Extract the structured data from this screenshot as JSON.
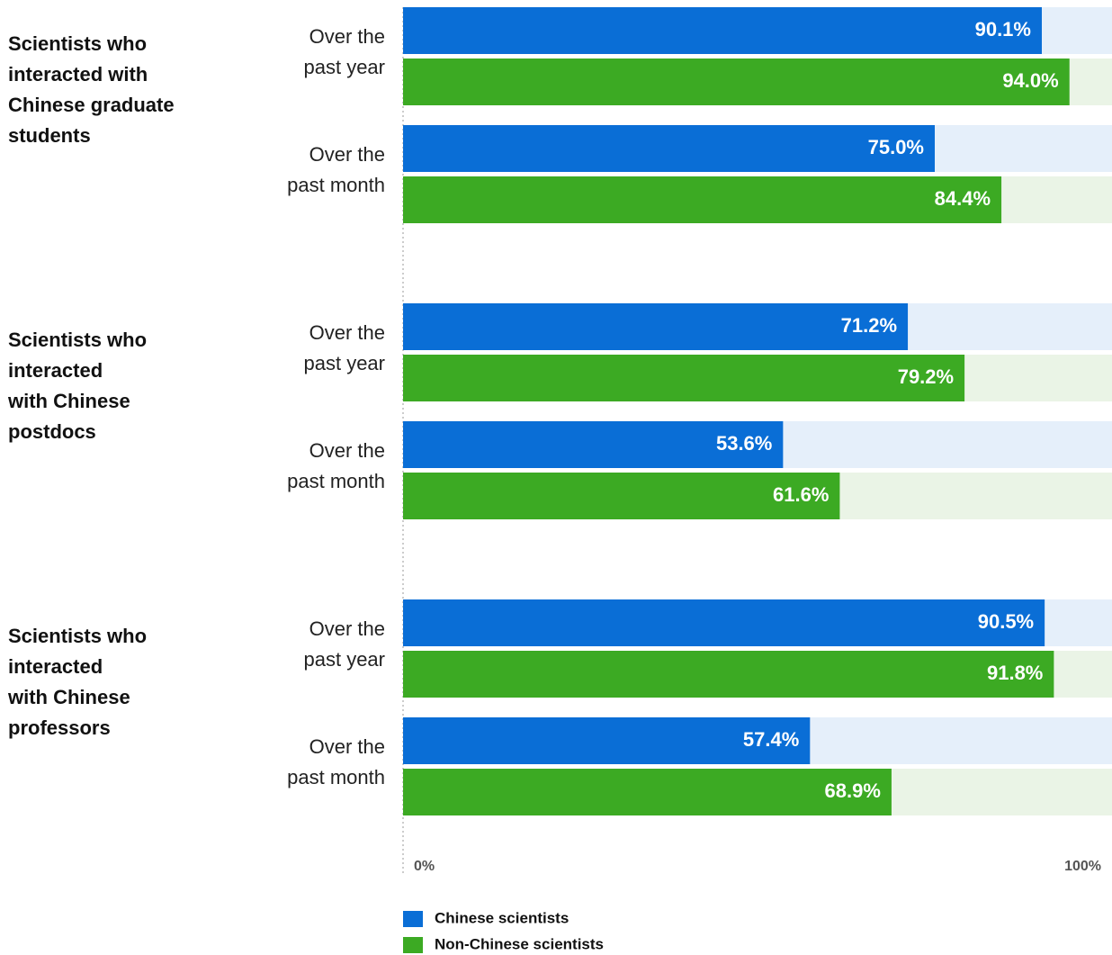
{
  "chart_data": {
    "type": "bar",
    "orientation": "horizontal",
    "xlim": [
      0,
      100
    ],
    "x_ticks": [
      "0%",
      "100%"
    ],
    "value_suffix": "%",
    "groups": [
      {
        "label_lines": [
          "Scientists who",
          "interacted with",
          "Chinese graduate",
          "students"
        ],
        "rows": [
          {
            "period_lines": [
              "Over the",
              "past year"
            ],
            "chinese": 90.1,
            "non_chinese": 94.0
          },
          {
            "period_lines": [
              "Over the",
              "past month"
            ],
            "chinese": 75.0,
            "non_chinese": 84.4
          }
        ]
      },
      {
        "label_lines": [
          "Scientists who",
          "interacted",
          "with Chinese",
          "postdocs"
        ],
        "rows": [
          {
            "period_lines": [
              "Over the",
              "past year"
            ],
            "chinese": 71.2,
            "non_chinese": 79.2
          },
          {
            "period_lines": [
              "Over the",
              "past month"
            ],
            "chinese": 53.6,
            "non_chinese": 61.6
          }
        ]
      },
      {
        "label_lines": [
          "Scientists who",
          "interacted",
          "with Chinese",
          "professors"
        ],
        "rows": [
          {
            "period_lines": [
              "Over the",
              "past year"
            ],
            "chinese": 90.5,
            "non_chinese": 91.8
          },
          {
            "period_lines": [
              "Over the",
              "past month"
            ],
            "chinese": 57.4,
            "non_chinese": 68.9
          }
        ]
      }
    ],
    "series": [
      {
        "key": "chinese",
        "name": "Chinese scientists",
        "color": "#0A6ED6",
        "track_color": "#E5EFFA"
      },
      {
        "key": "non_chinese",
        "name": "Non-Chinese scientists",
        "color": "#3CAA23",
        "track_color": "#EAF4E6"
      }
    ],
    "legend_position": "bottom-left"
  }
}
